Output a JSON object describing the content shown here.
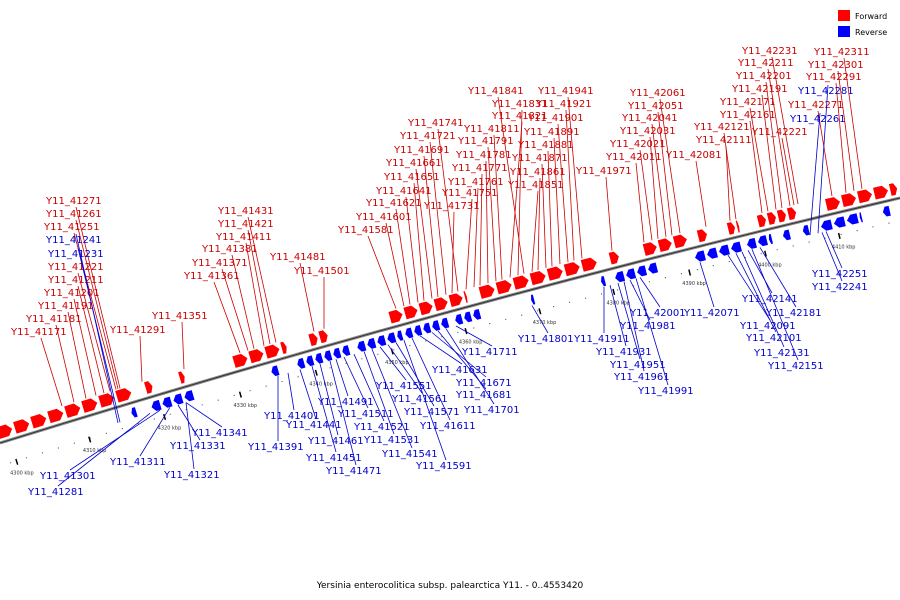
{
  "caption": "Yersinia enterocolitica subsp. palearctica Y11. - 0..4553420",
  "legend": {
    "forward_label": "Forward",
    "reverse_label": "Reverse",
    "forward_color": "#ff0000",
    "reverse_color": "#0000ff"
  },
  "axis": {
    "ticks": [
      "4300 kbp",
      "4310 kbp",
      "4320 kbp",
      "4330 kbp",
      "4340 kbp",
      "4350 kbp",
      "4360 kbp",
      "4370 kbp",
      "4380 kbp",
      "4390 kbp",
      "4400 kbp",
      "4410 kbp"
    ]
  },
  "genes": {
    "forward": [
      "Y11_41171",
      "Y11_41181",
      "Y11_41191",
      "Y11_41201",
      "Y11_41211",
      "Y11_41221",
      "Y11_41251",
      "Y11_41261",
      "Y11_41271",
      "Y11_41291",
      "Y11_41351",
      "Y11_41361",
      "Y11_41371",
      "Y11_41381",
      "Y11_41411",
      "Y11_41421",
      "Y11_41431",
      "Y11_41481",
      "Y11_41501",
      "Y11_41581",
      "Y11_41601",
      "Y11_41621",
      "Y11_41641",
      "Y11_41651",
      "Y11_41661",
      "Y11_41691",
      "Y11_41721",
      "Y11_41731",
      "Y11_41741",
      "Y11_41751",
      "Y11_41761",
      "Y11_41771",
      "Y11_41781",
      "Y11_41791",
      "Y11_41811",
      "Y11_41821",
      "Y11_41831",
      "Y11_41841",
      "Y11_41851",
      "Y11_41861",
      "Y11_41871",
      "Y11_41881",
      "Y11_41891",
      "Y11_41901",
      "Y11_41921",
      "Y11_41941",
      "Y11_41971",
      "Y11_42011",
      "Y11_42021",
      "Y11_42031",
      "Y11_42041",
      "Y11_42051",
      "Y11_42061",
      "Y11_42081",
      "Y11_42111",
      "Y11_42121",
      "Y11_42161",
      "Y11_42171",
      "Y11_42191",
      "Y11_42201",
      "Y11_42211",
      "Y11_42221",
      "Y11_42231",
      "Y11_42271",
      "Y11_42291",
      "Y11_42301",
      "Y11_42311"
    ],
    "reverse": [
      "Y11_41231",
      "Y11_41241",
      "Y11_41281",
      "Y11_41301",
      "Y11_41311",
      "Y11_41321",
      "Y11_41331",
      "Y11_41341",
      "Y11_41391",
      "Y11_41401",
      "Y11_41441",
      "Y11_41451",
      "Y11_41461",
      "Y11_41471",
      "Y11_41491",
      "Y11_41511",
      "Y11_41521",
      "Y11_41531",
      "Y11_41541",
      "Y11_41551",
      "Y11_41561",
      "Y11_41571",
      "Y11_41591",
      "Y11_41611",
      "Y11_41631",
      "Y11_41671",
      "Y11_41681",
      "Y11_41701",
      "Y11_41711",
      "Y11_41801",
      "Y11_41911",
      "Y11_41931",
      "Y11_41951",
      "Y11_41961",
      "Y11_41981",
      "Y11_41991",
      "Y11_42001",
      "Y11_42071",
      "Y11_42091",
      "Y11_42101",
      "Y11_42131",
      "Y11_42141",
      "Y11_42151",
      "Y11_42181",
      "Y11_42241",
      "Y11_42251",
      "Y11_42261",
      "Y11_42281"
    ]
  }
}
